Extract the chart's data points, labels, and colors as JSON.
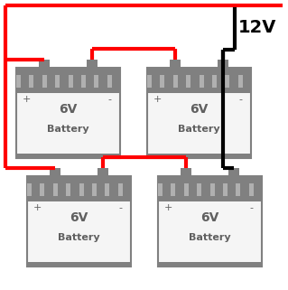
{
  "title": "12V",
  "battery_color": "#808080",
  "battery_body_color": "#f5f5f5",
  "battery_border_color": "#808080",
  "wire_red": "#ff0000",
  "wire_black": "#000000",
  "label_6v": "6V",
  "label_battery": "Battery",
  "plus_label": "+",
  "minus_label": "-",
  "bg_color": "#ffffff"
}
